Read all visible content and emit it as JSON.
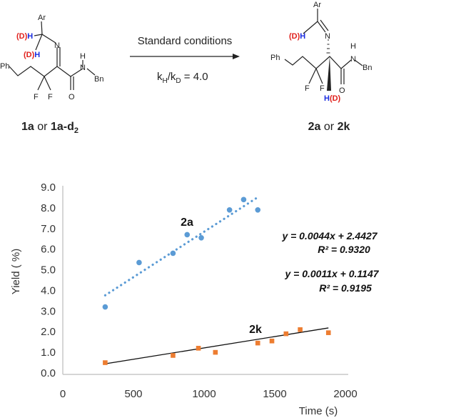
{
  "scheme": {
    "reactant": {
      "ar": "Ar",
      "d_label": "(D)",
      "h_label": "H",
      "n": "N",
      "ph": "Ph",
      "f": "F",
      "o": "O",
      "nh_h": "H",
      "bn": "Bn"
    },
    "product": {
      "ar": "Ar",
      "d_label": "(D)",
      "h_label": "H",
      "n": "N",
      "ph": "Ph",
      "f": "F",
      "o": "O",
      "nh_h": "H",
      "bn": "Bn",
      "hd_h": "H",
      "hd_d": "(D)"
    },
    "arrow_top": "Standard conditions",
    "kie": {
      "k": "k",
      "h_sub": "H",
      "slash": "/k",
      "d_sub": "D",
      "value": " = 4.0"
    },
    "reactant_label": {
      "a": "1a",
      "or": " or ",
      "b": "1a-d",
      "sub": "2"
    },
    "product_label": {
      "a": "2a",
      "or": " or ",
      "b": "2k"
    },
    "colors": {
      "deuterium": "#e0201c",
      "hydrogen": "#1c2ee0"
    }
  },
  "chart_data": {
    "type": "scatter",
    "xlabel": "Time (s)",
    "ylabel": "Yield ( %)",
    "xlim": [
      0,
      2000
    ],
    "ylim": [
      0,
      9
    ],
    "xticks": [
      "0",
      "500",
      "1000",
      "1500",
      "2000"
    ],
    "yticks": [
      "0.0",
      "1.0",
      "2.0",
      "3.0",
      "4.0",
      "5.0",
      "6.0",
      "7.0",
      "8.0",
      "9.0"
    ],
    "grid": false,
    "series": [
      {
        "name": "2a",
        "color": "#5b9bd5",
        "marker": "circle",
        "trendline": "dotted",
        "points": [
          [
            300,
            3.2
          ],
          [
            540,
            5.35
          ],
          [
            780,
            5.8
          ],
          [
            880,
            6.7
          ],
          [
            980,
            6.55
          ],
          [
            1180,
            7.9
          ],
          [
            1280,
            8.4
          ],
          [
            1380,
            7.9
          ]
        ],
        "fit": {
          "slope": 0.0044,
          "intercept": 2.4427,
          "x_range": [
            300,
            1380
          ]
        },
        "equation": "y = 0.0044x + 2.4427",
        "r2": "R² = 0.9320"
      },
      {
        "name": "2k",
        "color": "#ed7d31",
        "marker": "square",
        "trendline": "solid",
        "trendline_color": "#111111",
        "points": [
          [
            300,
            0.5
          ],
          [
            780,
            0.85
          ],
          [
            960,
            1.2
          ],
          [
            1080,
            1.0
          ],
          [
            1380,
            1.45
          ],
          [
            1480,
            1.55
          ],
          [
            1580,
            1.9
          ],
          [
            1680,
            2.1
          ],
          [
            1880,
            1.95
          ]
        ],
        "fit": {
          "slope": 0.0011,
          "intercept": 0.1147,
          "x_range": [
            300,
            1880
          ]
        },
        "equation": "y = 0.0011x + 0.1147",
        "r2": "R² = 0.9195"
      }
    ]
  }
}
